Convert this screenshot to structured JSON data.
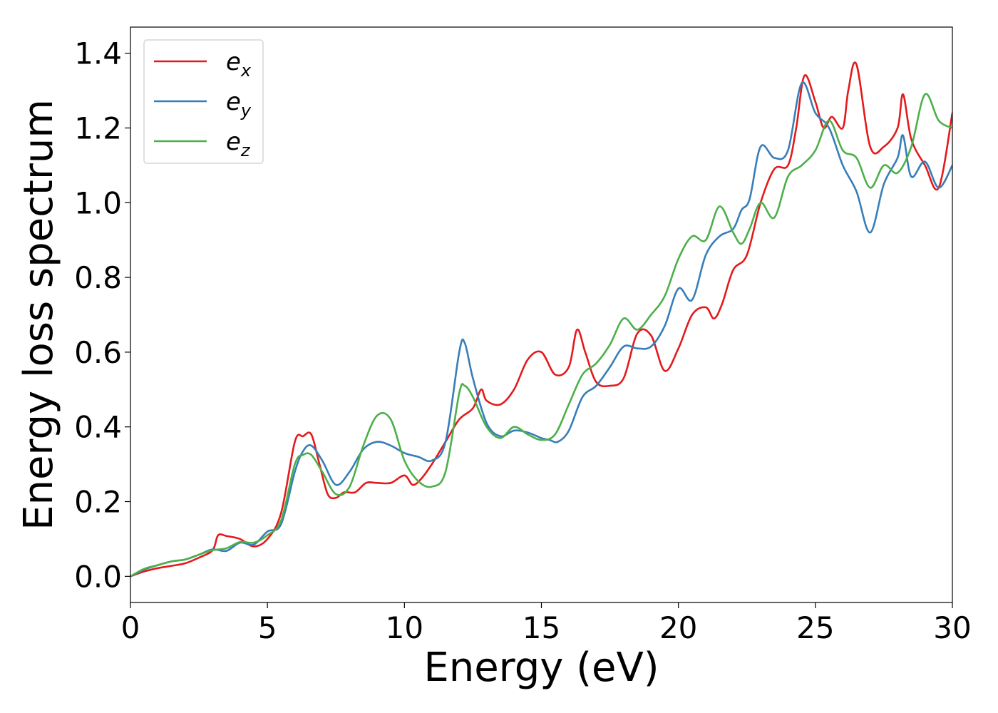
{
  "chart_data": {
    "type": "line",
    "xlabel": "Energy (eV)",
    "ylabel": "Energy loss spectrum",
    "xlim": [
      0,
      30
    ],
    "ylim": [
      -0.07,
      1.47
    ],
    "xticks": [
      0,
      5,
      10,
      15,
      20,
      25,
      30
    ],
    "xtick_labels": [
      "0",
      "5",
      "10",
      "15",
      "20",
      "25",
      "30"
    ],
    "yticks": [
      0.0,
      0.2,
      0.4,
      0.6,
      0.8,
      1.0,
      1.2,
      1.4
    ],
    "ytick_labels": [
      "0.0",
      "0.2",
      "0.4",
      "0.6",
      "0.8",
      "1.0",
      "1.2",
      "1.4"
    ],
    "grid": false,
    "legend_position": "top-left",
    "series": [
      {
        "name": "e_x",
        "legend_base": "e",
        "legend_sub": "x",
        "color": "#e41a1c",
        "x": [
          0,
          0.5,
          1,
          1.5,
          2,
          2.5,
          3,
          3.2,
          3.5,
          4,
          4.5,
          5,
          5.5,
          6,
          6.3,
          6.6,
          6.9,
          7.2,
          7.5,
          7.8,
          8.2,
          8.6,
          9,
          9.5,
          10,
          10.3,
          10.6,
          11,
          11.5,
          12,
          12.5,
          12.8,
          13,
          13.5,
          14,
          14.5,
          15,
          15.5,
          16,
          16.3,
          16.6,
          17,
          17.5,
          18,
          18.5,
          19,
          19.5,
          20,
          20.5,
          21,
          21.3,
          21.6,
          22,
          22.5,
          23,
          23.5,
          24,
          24.3,
          24.6,
          25,
          25.3,
          25.6,
          26,
          26.2,
          26.5,
          27,
          27.5,
          28,
          28.2,
          28.5,
          29,
          29.5,
          30
        ],
        "y": [
          0,
          0.013,
          0.022,
          0.028,
          0.035,
          0.05,
          0.07,
          0.11,
          0.108,
          0.1,
          0.08,
          0.1,
          0.17,
          0.36,
          0.375,
          0.38,
          0.3,
          0.22,
          0.21,
          0.225,
          0.225,
          0.25,
          0.25,
          0.25,
          0.27,
          0.245,
          0.26,
          0.3,
          0.36,
          0.42,
          0.45,
          0.5,
          0.47,
          0.46,
          0.5,
          0.58,
          0.6,
          0.54,
          0.56,
          0.66,
          0.6,
          0.52,
          0.51,
          0.53,
          0.65,
          0.645,
          0.55,
          0.61,
          0.7,
          0.72,
          0.69,
          0.73,
          0.82,
          0.86,
          1.0,
          1.09,
          1.1,
          1.2,
          1.34,
          1.27,
          1.2,
          1.23,
          1.2,
          1.3,
          1.37,
          1.15,
          1.15,
          1.2,
          1.29,
          1.17,
          1.1,
          1.04,
          1.24
        ]
      },
      {
        "name": "e_y",
        "legend_base": "e",
        "legend_sub": "y",
        "color": "#377eb8",
        "x": [
          0,
          0.5,
          1,
          1.5,
          2,
          2.5,
          3,
          3.5,
          4,
          4.5,
          5,
          5.5,
          6,
          6.3,
          6.6,
          7,
          7.5,
          8,
          8.5,
          9,
          9.5,
          10,
          10.5,
          11,
          11.5,
          12,
          12.2,
          12.5,
          13,
          13.5,
          14,
          14.5,
          15,
          15.3,
          15.6,
          16,
          16.5,
          17,
          17.5,
          18,
          18.5,
          19,
          19.5,
          20,
          20.5,
          21,
          21.5,
          22,
          22.3,
          22.6,
          23,
          23.5,
          24,
          24.5,
          25,
          25.5,
          26,
          26.5,
          27,
          27.5,
          28,
          28.2,
          28.5,
          29,
          29.5,
          30
        ],
        "y": [
          0,
          0.018,
          0.03,
          0.04,
          0.045,
          0.058,
          0.072,
          0.068,
          0.09,
          0.085,
          0.12,
          0.14,
          0.28,
          0.335,
          0.35,
          0.31,
          0.245,
          0.28,
          0.34,
          0.36,
          0.35,
          0.33,
          0.32,
          0.31,
          0.36,
          0.6,
          0.625,
          0.53,
          0.41,
          0.375,
          0.39,
          0.385,
          0.37,
          0.365,
          0.36,
          0.39,
          0.48,
          0.51,
          0.56,
          0.615,
          0.61,
          0.615,
          0.67,
          0.77,
          0.74,
          0.86,
          0.91,
          0.93,
          0.98,
          1.01,
          1.15,
          1.12,
          1.14,
          1.32,
          1.24,
          1.2,
          1.1,
          1.03,
          0.92,
          1.05,
          1.12,
          1.18,
          1.07,
          1.11,
          1.04,
          1.1
        ]
      },
      {
        "name": "e_z",
        "legend_base": "e",
        "legend_sub": "z",
        "color": "#4daf4a",
        "x": [
          0,
          0.5,
          1,
          1.5,
          2,
          2.5,
          3,
          3.5,
          4,
          4.5,
          5,
          5.5,
          6,
          6.3,
          6.6,
          7,
          7.5,
          8,
          8.5,
          9,
          9.5,
          10,
          10.5,
          11,
          11.5,
          12,
          12.2,
          12.5,
          13,
          13.5,
          14,
          14.5,
          15,
          15.5,
          16,
          16.5,
          17,
          17.5,
          18,
          18.5,
          19,
          19.5,
          20,
          20.5,
          21,
          21.5,
          22,
          22.3,
          22.6,
          23,
          23.5,
          24,
          24.5,
          25,
          25.5,
          26,
          26.5,
          27,
          27.5,
          28,
          28.5,
          29,
          29.5,
          30
        ],
        "y": [
          0,
          0.02,
          0.03,
          0.04,
          0.045,
          0.058,
          0.07,
          0.075,
          0.092,
          0.09,
          0.11,
          0.15,
          0.3,
          0.325,
          0.325,
          0.28,
          0.22,
          0.24,
          0.35,
          0.43,
          0.42,
          0.31,
          0.255,
          0.24,
          0.28,
          0.49,
          0.51,
          0.48,
          0.4,
          0.37,
          0.4,
          0.38,
          0.365,
          0.38,
          0.46,
          0.54,
          0.57,
          0.62,
          0.69,
          0.66,
          0.7,
          0.75,
          0.85,
          0.91,
          0.9,
          0.99,
          0.92,
          0.89,
          0.93,
          1.0,
          0.96,
          1.07,
          1.1,
          1.14,
          1.22,
          1.14,
          1.12,
          1.04,
          1.1,
          1.08,
          1.15,
          1.29,
          1.22,
          1.2
        ]
      }
    ]
  }
}
